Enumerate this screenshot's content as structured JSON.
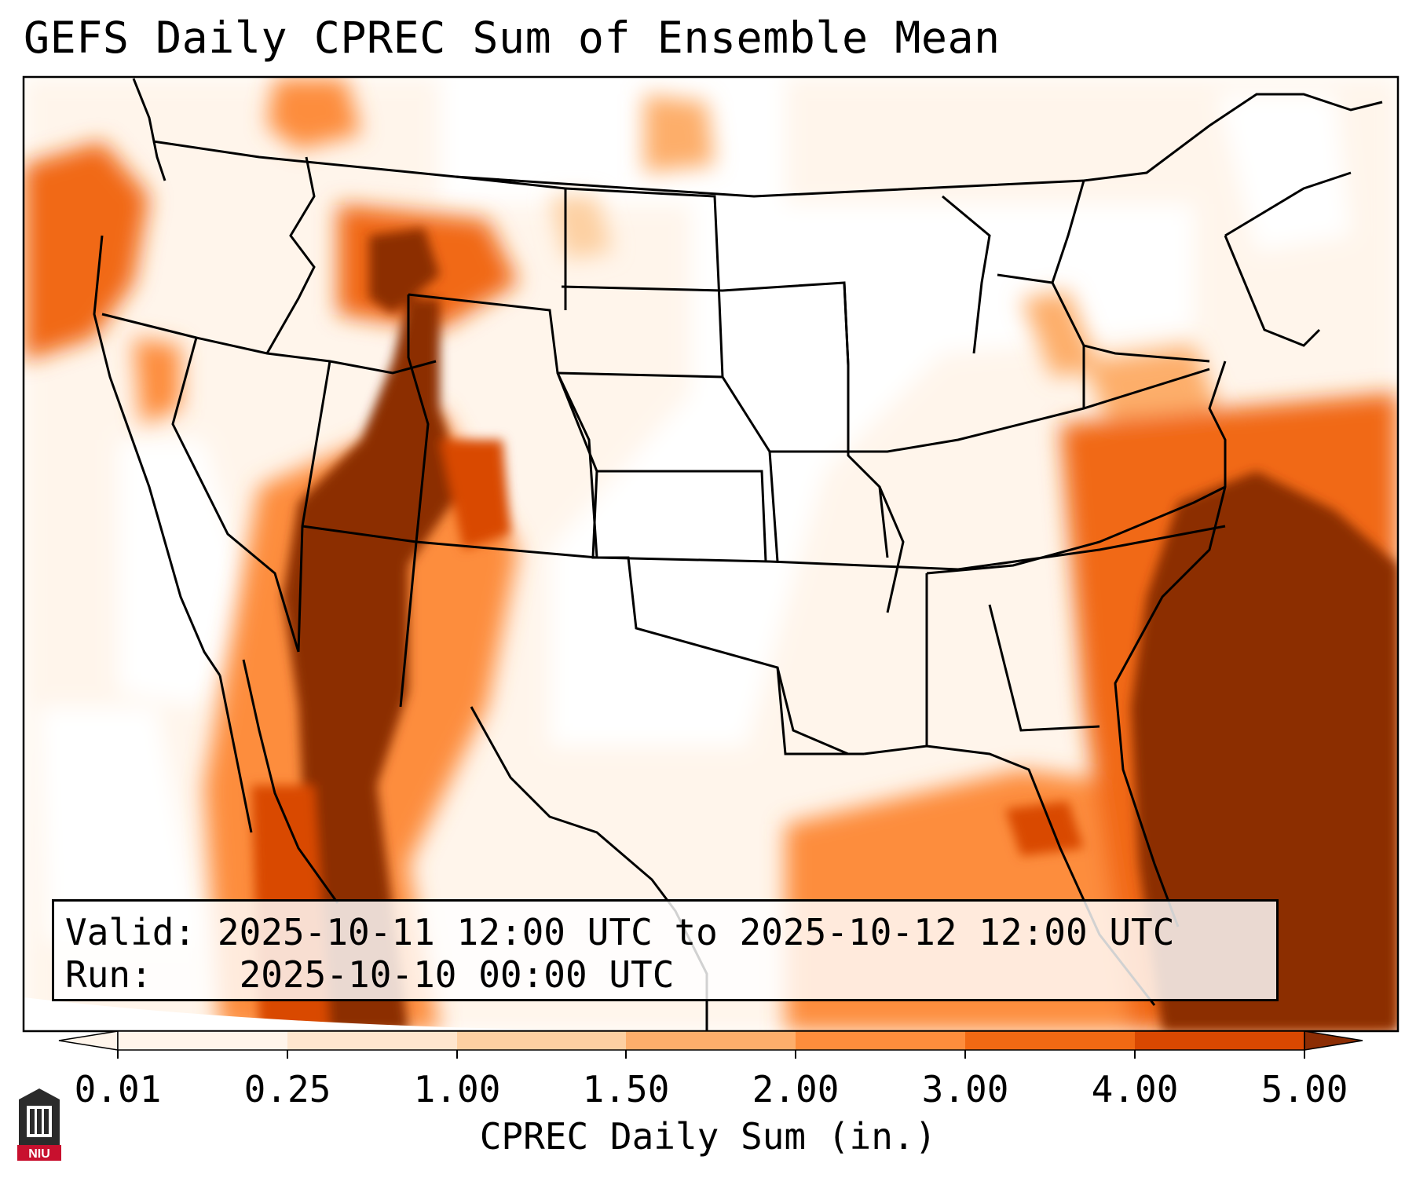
{
  "title": "GEFS Daily CPREC Sum of Ensemble Mean",
  "info": {
    "valid_label": "Valid:",
    "valid_value": "2025-10-11 12:00 UTC to 2025-10-12 12:00 UTC",
    "run_label": "Run:",
    "run_value": "2025-10-10 00:00 UTC"
  },
  "colorbar": {
    "label": "CPREC Daily Sum (in.)",
    "ticks": [
      "0.01",
      "0.25",
      "1.00",
      "1.50",
      "2.00",
      "3.00",
      "4.00",
      "5.00"
    ],
    "colors": [
      "#fff5eb",
      "#fee6ce",
      "#fdd0a2",
      "#fdae6b",
      "#fd8d3c",
      "#f16913",
      "#d94801",
      "#8c2d04"
    ],
    "extend": "both"
  },
  "logo": {
    "text": "NIU",
    "color": "#c8102e"
  },
  "map": {
    "projection": "Lambert Conformal (CONUS)",
    "heavy_color": "#8c2d04",
    "background_color": "#ffffff"
  }
}
